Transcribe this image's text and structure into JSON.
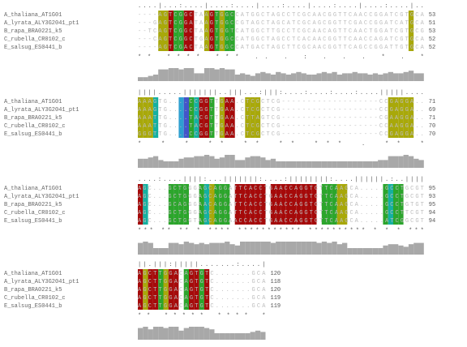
{
  "names": [
    "A_thaliana_AT1G01",
    "A_lyrata_ALY3G2041_pt1",
    "B_rapa_BRA0221_k5",
    "C_rubella_CR0102_c",
    "E_salsug_ES0441_b"
  ],
  "color_map": {
    "R": "#a50a0a",
    "y": "#a8a80a",
    "g": "#2ca52c",
    "t": "#14b0a0",
    "c": "#2e9fd0",
    "b": "#4455c8"
  },
  "conservation_range": [
    0,
    10
  ],
  "blocks": [
    {
      "ruler": "....|...:....|....:....|....:....|....:....|....:....|..",
      "rows": [
        {
          "seq": "----AGTCGGCTAAGTGGCCATGGCTAGCCTCGCAACGGTTCAACCGGATCGTGCA",
          "end": "53"
        },
        {
          "seq": "---GAGTCGGATAAGTGGCCGTAGCTAGCATCGCAGCGGTTCGACCGGATCATGCA",
          "end": "51"
        },
        {
          "seq": "--TCAGTCGGCTAAGTGGTCATGGCTTGCCTCGCAACAGTTCAACTGGATCGTGCG",
          "end": "53"
        },
        {
          "seq": "---CAGTCGGCTGAGTGGCCATGGCTAGCCTCACAACGGTTCAACCAGATCGTGCA",
          "end": "52"
        },
        {
          "seq": "----AGTCGACTAAGTGGCCATGACTAGCTTCGCAACGGTTCAGCCGGATTGTGCA",
          "end": "52"
        }
      ],
      "colors": "....yyRggRR..yRgygg..................................y..",
      "consensus": "    ** ****  *** ..  .   :    .   .     . *    .    *  ",
      "conservation": [
        3,
        3,
        4,
        5,
        9,
        9,
        10,
        10,
        9,
        10,
        10,
        6,
        6,
        10,
        10,
        9,
        10,
        9,
        9,
        5,
        6,
        5,
        4,
        6,
        7,
        6,
        5,
        7,
        6,
        5,
        6,
        7,
        6,
        5,
        5,
        6,
        7,
        6,
        7,
        5,
        6,
        6,
        7,
        6,
        6,
        5,
        6,
        5,
        6,
        7,
        6,
        6,
        7,
        8,
        6,
        6
      ]
    },
    {
      "ruler": "||||.....|||||||..|||...:|||:....:....:....:....|||||....",
      "rows": [
        {
          "seq": "AAAGTG....CCGGTTGAA.CTCGCTCG-------------------CCGAGGA..",
          "end": "71"
        },
        {
          "seq": "AAAGTG....CCGGTTGAA.CTCGCTCG-------------------CCGAGGA..",
          "end": "69"
        },
        {
          "seq": "AAATTG....TACGTTGAA.CTTAGTCG-------------------CGAAGGA..",
          "end": "71"
        },
        {
          "seq": "AAATTG....TACGTTGAA.CTCGCTCG-------------------CCAAGGA..",
          "end": "70"
        },
        {
          "seq": "GGGTTG....CCGGTTGAA.CTCGCTCG-------------------CCGAGGA..",
          "end": "70"
        }
      ],
      "colors": "yyyt....cbgtRRg.yRR..yyy.........................yyyyy..",
      "consensus": "  * *    * ** **  ** ***  .                     ** *   ",
      "conservation": [
        7,
        7,
        8,
        9,
        6,
        5,
        5,
        5,
        7,
        8,
        8,
        9,
        9,
        10,
        9,
        7,
        8,
        10,
        10,
        6,
        6,
        8,
        9,
        9,
        8,
        6,
        7,
        5,
        5,
        5,
        5,
        5,
        5,
        5,
        5,
        5,
        5,
        5,
        5,
        5,
        5,
        5,
        5,
        5,
        5,
        5,
        5,
        6,
        6,
        9,
        9,
        9,
        10,
        9,
        7,
        6
      ]
    },
    {
      "ruler": "....:....||||:...|||||||:....:||||||||:....||||||.:..||||",
      "rows": [
        {
          "seq": "AGC...GCTGGGAGCAGGATTCACCTGAACCAGGTCTTCAAGCA.....GCCTGCGT",
          "end": "95"
        },
        {
          "seq": "AGC...GCTGGGAGCAGGATTCACCTGAACCAGGTCTTCAAGCA.....GCCTGCGT",
          "end": "93"
        },
        {
          "seq": "AGC...GCAGGGAACAGGATTCACCTGAACCAGGTCTTCAAGCA.....GCCTGTGT",
          "end": "95"
        },
        {
          "seq": "AGC...GCTGGGAGCAGGATTCACCTGAACCAGGTCTTCAAGCA.....GCCTTCGT",
          "end": "94"
        },
        {
          "seq": "AGC...GCTGGTAGCAGGAACCACCTGAACCAGGTCTTCAAGCA.....ATCGGCGT",
          "end": "94"
        }
      ],
      "colors": "Rt....gggg..gtyggg.RRRRRR.RRRRRRRRR.gggyy.......gtgg....",
      "consensus": "***   ** ** * ****  *********** ********** *    *  * ***",
      "conservation": [
        9,
        10,
        9,
        5,
        5,
        5,
        9,
        9,
        8,
        10,
        9,
        8,
        9,
        8,
        9,
        9,
        9,
        10,
        8,
        7,
        10,
        10,
        10,
        10,
        10,
        10,
        9,
        10,
        10,
        10,
        10,
        10,
        10,
        10,
        10,
        9,
        10,
        9,
        10,
        8,
        9,
        5,
        5,
        5,
        5,
        5,
        5,
        5,
        7,
        8,
        8,
        7,
        6,
        8,
        9,
        9
      ]
    },
    {
      "ruler": "||.|||:|||||.......:....|",
      "rows": [
        {
          "seq": "AGCTTGGACAGTGTC.......GCA",
          "end": "120"
        },
        {
          "seq": "AGCTTGGACAGTGTC.......GCA",
          "end": "118"
        },
        {
          "seq": "AGCTTGGACAGTGTC.......GCA",
          "end": "120"
        },
        {
          "seq": "AGCTTGGACAGTGTC.......GCA",
          "end": "119"
        },
        {
          "seq": "AGCTTGGACAGTGTC.......GCA",
          "end": "119"
        }
      ],
      "colors": "RyRRgyRR.gRRgR...........",
      "consensus": "** ***** **** *          ",
      "conservation": [
        9,
        10,
        8,
        10,
        10,
        9,
        10,
        10,
        7,
        9,
        10,
        10,
        10,
        9,
        8,
        5,
        5,
        5,
        5,
        5,
        5,
        5,
        6,
        7,
        6
      ]
    }
  ]
}
